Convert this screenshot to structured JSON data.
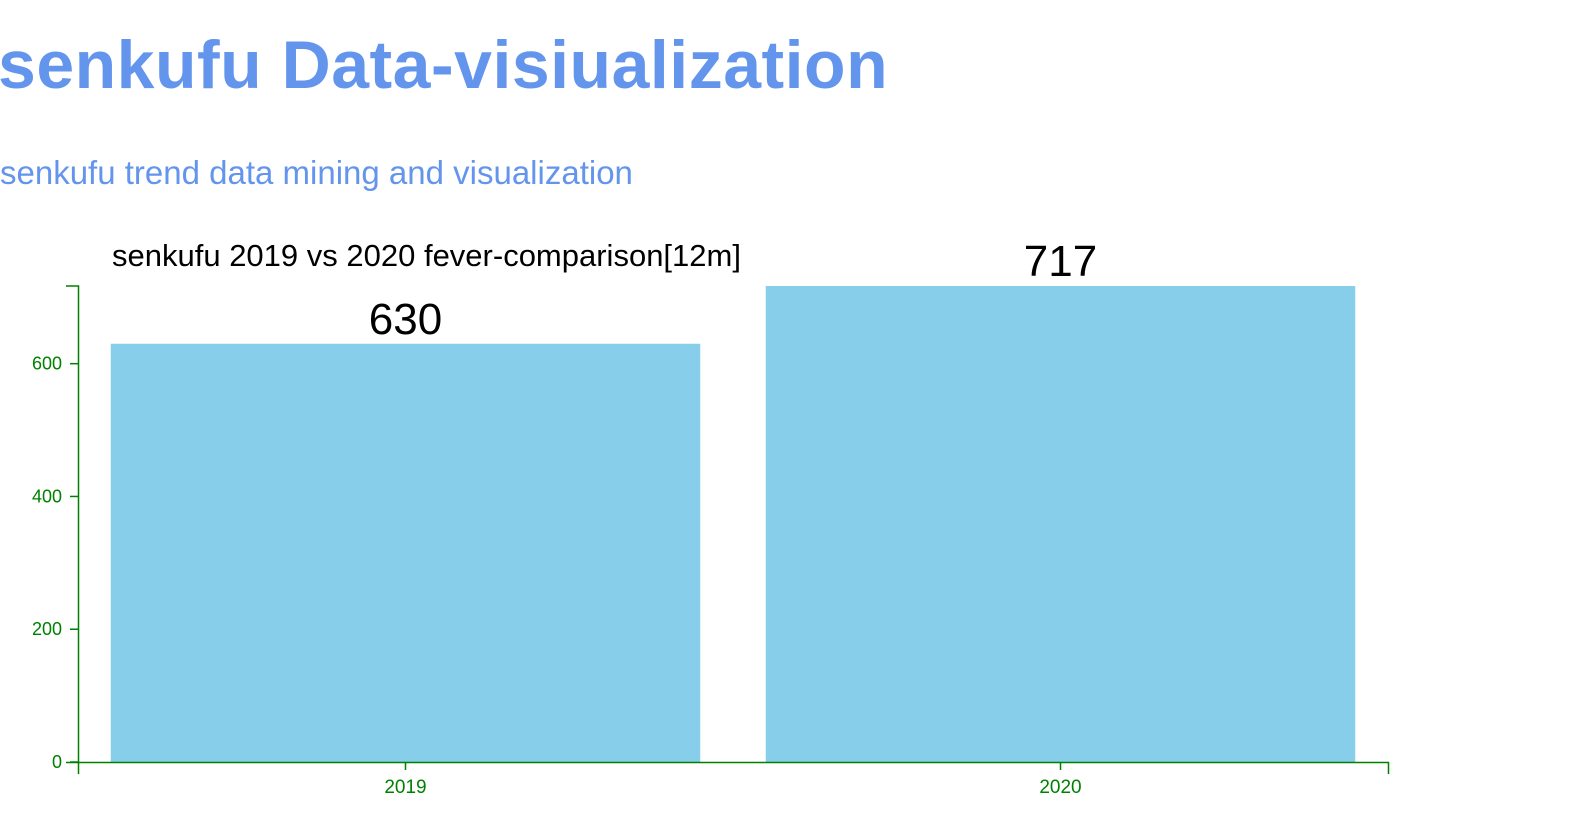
{
  "header": {
    "title": "senkufu Data-visiualization",
    "subtitle": "senkufu trend data mining and visualization"
  },
  "colors": {
    "accent": "#6495ed",
    "bar": "#87ceeb",
    "axis": "#008000",
    "text": "#000000"
  },
  "chart_data": {
    "type": "bar",
    "title": "senkufu 2019 vs 2020 fever-comparison[12m]",
    "categories": [
      "2019",
      "2020"
    ],
    "values": [
      630,
      717
    ],
    "ylim": [
      0,
      717
    ],
    "yticks": [
      0,
      200,
      400,
      600
    ],
    "xlabel": "",
    "ylabel": "",
    "grid": false,
    "legend": "none"
  }
}
